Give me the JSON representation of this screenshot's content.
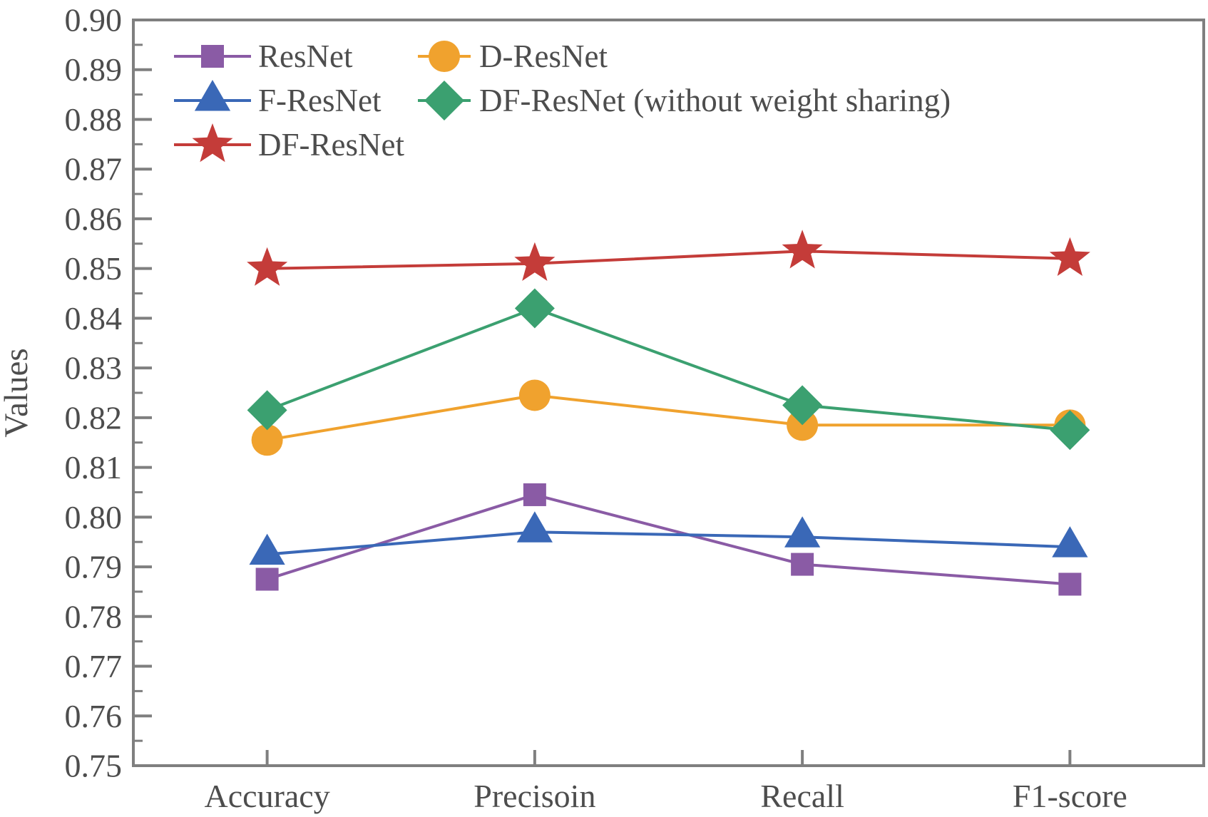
{
  "figure": {
    "background": "#ffffff",
    "axis_color": "#7f7f7f",
    "text_color": "#4d4d4d"
  },
  "chart_data": {
    "type": "line",
    "title": "",
    "xlabel": "",
    "ylabel": "Values",
    "categories": [
      "Accuracy",
      "Precisoin",
      "Recall",
      "F1-score"
    ],
    "ylim": [
      0.75,
      0.9
    ],
    "ytick_step": 0.01,
    "yminor_step": 0.005,
    "ytick_format_decimals": 2,
    "grid": false,
    "legend_position": "upper-left-inside-two-columns",
    "series": [
      {
        "name": "ResNet",
        "marker": "square",
        "color": "#8a5ba5",
        "values": [
          0.7875,
          0.8045,
          0.7905,
          0.7865
        ]
      },
      {
        "name": "D-ResNet",
        "marker": "circle",
        "color": "#f0a22e",
        "values": [
          0.8155,
          0.8245,
          0.8185,
          0.8185
        ]
      },
      {
        "name": "F-ResNet",
        "marker": "triangle",
        "color": "#3a68b7",
        "values": [
          0.7925,
          0.797,
          0.796,
          0.794
        ]
      },
      {
        "name": "DF-ResNet (without weight sharing)",
        "marker": "diamond",
        "color": "#3ba070",
        "values": [
          0.8215,
          0.842,
          0.8225,
          0.8175
        ]
      },
      {
        "name": "DF-ResNet",
        "marker": "star",
        "color": "#c43c39",
        "values": [
          0.85,
          0.851,
          0.8535,
          0.852
        ]
      }
    ]
  }
}
